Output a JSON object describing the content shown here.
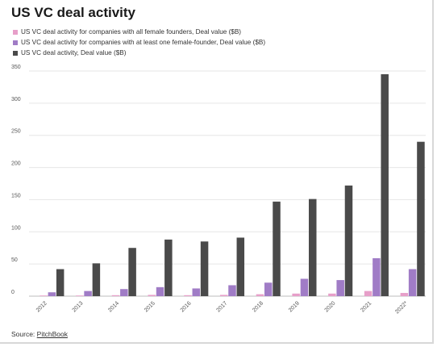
{
  "title": "US VC deal activity",
  "source": {
    "prefix": "Source:",
    "link": "PitchBook"
  },
  "colors": {
    "female": "#e79fc9",
    "one_female": "#a07cc6",
    "total": "#4a4a4a",
    "grid": "#e6e6e6"
  },
  "chart_data": {
    "type": "bar",
    "categories": [
      "2012",
      "2013",
      "2014",
      "2015",
      "2016",
      "2017",
      "2018",
      "2019",
      "2020",
      "2021",
      "2022*"
    ],
    "series": [
      {
        "name": "US VC deal activity for companies with all female founders, Deal value ($B)",
        "values": [
          1,
          1,
          1.5,
          2,
          1.5,
          2,
          3,
          4,
          4,
          8,
          5
        ]
      },
      {
        "name": "US VC deal activity for companies with at least one female-founder, Deal value ($B)",
        "values": [
          6,
          8,
          11,
          14,
          12,
          17,
          21,
          27,
          25,
          59,
          42
        ]
      },
      {
        "name": "US VC deal activity, Deal value ($B)",
        "values": [
          42,
          51,
          75,
          88,
          85,
          91,
          147,
          151,
          172,
          345,
          240
        ]
      }
    ],
    "yticks": [
      0,
      50,
      100,
      150,
      200,
      250,
      300,
      350
    ],
    "ylim": [
      0,
      350
    ],
    "grid": true,
    "legend_position": "top-left"
  }
}
